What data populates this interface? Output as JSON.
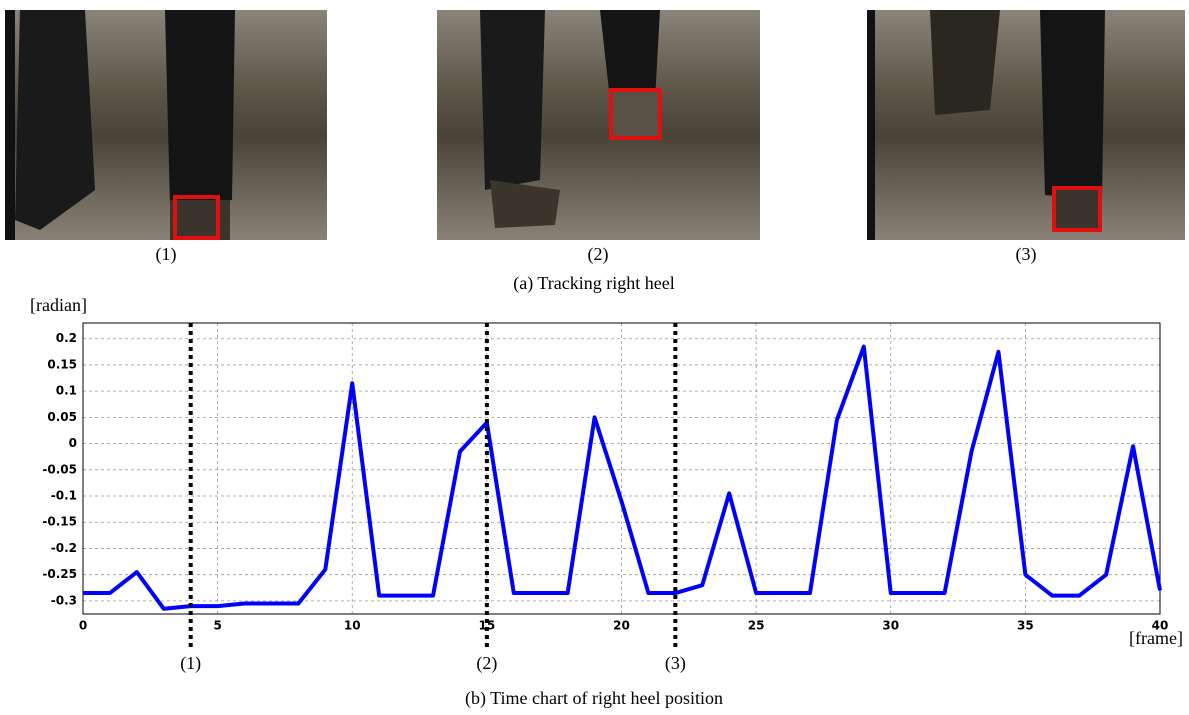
{
  "figure": {
    "images": [
      {
        "label": "(1)"
      },
      {
        "label": "(2)"
      },
      {
        "label": "(3)"
      }
    ],
    "caption": "(a) Tracking right heel"
  },
  "chart_data": {
    "type": "line",
    "caption": "(b) Time chart of right heel position",
    "y_label": "[radian]",
    "x_label": "[frame]",
    "x": [
      0,
      1,
      2,
      3,
      4,
      5,
      6,
      7,
      8,
      9,
      10,
      11,
      12,
      13,
      14,
      15,
      16,
      17,
      18,
      19,
      20,
      21,
      22,
      23,
      24,
      25,
      26,
      27,
      28,
      29,
      30,
      31,
      32,
      33,
      34,
      35,
      36,
      37,
      38,
      39,
      40
    ],
    "series": [
      {
        "color": "#0000ff",
        "values": [
          -0.285,
          -0.285,
          -0.245,
          -0.315,
          -0.31,
          -0.31,
          -0.305,
          -0.305,
          -0.305,
          -0.24,
          0.115,
          -0.29,
          -0.29,
          -0.29,
          -0.015,
          0.04,
          -0.285,
          -0.285,
          -0.285,
          0.05,
          -0.11,
          -0.285,
          -0.285,
          -0.27,
          -0.095,
          -0.285,
          -0.285,
          -0.285,
          0.045,
          0.185,
          -0.285,
          -0.285,
          -0.285,
          -0.015,
          0.175,
          -0.25,
          -0.29,
          -0.29,
          -0.25,
          -0.005,
          -0.28
        ]
      }
    ],
    "xlim": [
      0,
      40
    ],
    "ylim": [
      -0.325,
      0.23
    ],
    "xticks": [
      0,
      5,
      10,
      15,
      20,
      25,
      30,
      35,
      40
    ],
    "yticks": [
      0.2,
      0.15,
      0.1,
      0.05,
      0,
      -0.05,
      -0.1,
      -0.15,
      -0.2,
      -0.25,
      -0.3
    ],
    "grid": true,
    "markers": [
      {
        "x": 4,
        "label": "(1)"
      },
      {
        "x": 15,
        "label": "(2)"
      },
      {
        "x": 22,
        "label": "(3)"
      }
    ]
  }
}
